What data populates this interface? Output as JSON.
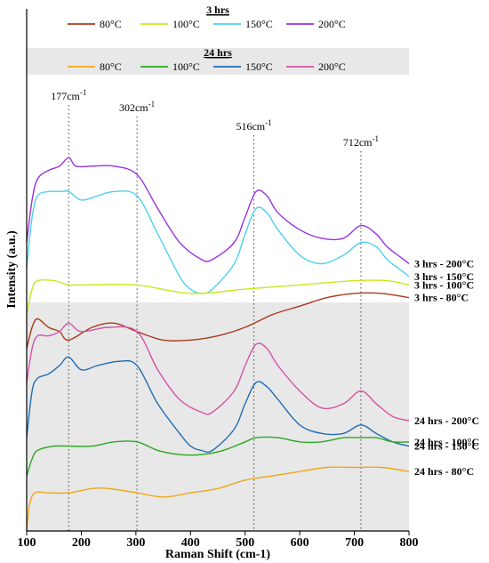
{
  "chart_data": {
    "type": "line",
    "xlabel": "Raman Shift (cm-1)",
    "ylabel": "Intensity (a.u.)",
    "xlim": [
      100,
      800
    ],
    "xticks": [
      100,
      200,
      300,
      400,
      500,
      600,
      700,
      800
    ],
    "legend_groups": [
      {
        "title": "3 hrs",
        "background": "none",
        "entries": [
          {
            "name": "80°C",
            "color": "#a83a1a"
          },
          {
            "name": "100°C",
            "color": "#c8e81e"
          },
          {
            "name": "150°C",
            "color": "#4fd0ee"
          },
          {
            "name": "200°C",
            "color": "#9b30e0"
          }
        ]
      },
      {
        "title": "24 hrs",
        "background": "#e8e8e8",
        "entries": [
          {
            "name": "80°C",
            "color": "#f0a818"
          },
          {
            "name": "100°C",
            "color": "#2aa820"
          },
          {
            "name": "150°C",
            "color": "#1f6eb4"
          },
          {
            "name": "200°C",
            "color": "#d652a6"
          }
        ]
      }
    ],
    "peaks": [
      {
        "x": 177,
        "label": "177cm-1"
      },
      {
        "x": 302,
        "label": "302cm-1"
      },
      {
        "x": 516,
        "label": "516cm-1"
      },
      {
        "x": 712,
        "label": "712cm-1"
      }
    ],
    "shaded_region": "24 hrs",
    "series": [
      {
        "name": "3 hrs - 200°C",
        "color": "#9b30e0",
        "group": "3 hrs",
        "x": [
          100,
          110,
          120,
          140,
          160,
          177,
          190,
          220,
          260,
          302,
          340,
          380,
          420,
          440,
          480,
          500,
          520,
          540,
          560,
          600,
          640,
          680,
          712,
          740,
          760,
          790,
          800
        ],
        "y": [
          0.68,
          0.78,
          0.83,
          0.85,
          0.86,
          0.88,
          0.86,
          0.86,
          0.86,
          0.84,
          0.76,
          0.68,
          0.64,
          0.64,
          0.68,
          0.74,
          0.8,
          0.79,
          0.75,
          0.71,
          0.69,
          0.69,
          0.72,
          0.7,
          0.67,
          0.64,
          0.63
        ]
      },
      {
        "name": "3 hrs - 150°C",
        "color": "#4fd0ee",
        "group": "3 hrs",
        "x": [
          100,
          110,
          120,
          140,
          160,
          177,
          200,
          230,
          260,
          302,
          340,
          380,
          400,
          420,
          440,
          480,
          500,
          520,
          540,
          560,
          600,
          640,
          680,
          712,
          740,
          760,
          790,
          800
        ],
        "y": [
          0.62,
          0.74,
          0.79,
          0.8,
          0.8,
          0.8,
          0.78,
          0.79,
          0.8,
          0.79,
          0.7,
          0.6,
          0.57,
          0.56,
          0.57,
          0.63,
          0.7,
          0.76,
          0.75,
          0.71,
          0.65,
          0.63,
          0.65,
          0.68,
          0.67,
          0.64,
          0.61,
          0.6
        ]
      },
      {
        "name": "3 hrs - 100°C",
        "color": "#c8e81e",
        "group": "3 hrs",
        "x": [
          100,
          110,
          120,
          150,
          177,
          200,
          300,
          400,
          500,
          600,
          700,
          760,
          800
        ],
        "y": [
          0.51,
          0.57,
          0.59,
          0.59,
          0.58,
          0.58,
          0.58,
          0.56,
          0.57,
          0.58,
          0.59,
          0.59,
          0.58
        ]
      },
      {
        "name": "3 hrs - 80°C",
        "color": "#a83a1a",
        "group": "3 hrs",
        "x": [
          100,
          110,
          120,
          140,
          160,
          177,
          220,
          260,
          302,
          350,
          400,
          450,
          500,
          550,
          600,
          650,
          700,
          750,
          800
        ],
        "y": [
          0.43,
          0.48,
          0.5,
          0.48,
          0.47,
          0.45,
          0.48,
          0.49,
          0.47,
          0.45,
          0.45,
          0.46,
          0.48,
          0.51,
          0.53,
          0.55,
          0.56,
          0.56,
          0.55
        ]
      },
      {
        "name": "24 hrs - 200°C",
        "color": "#d652a6",
        "group": "24 hrs",
        "x": [
          100,
          110,
          120,
          140,
          160,
          177,
          200,
          250,
          302,
          340,
          380,
          420,
          440,
          480,
          500,
          520,
          540,
          560,
          600,
          640,
          680,
          712,
          740,
          770,
          800
        ],
        "y": [
          0.35,
          0.43,
          0.46,
          0.46,
          0.47,
          0.49,
          0.47,
          0.48,
          0.47,
          0.38,
          0.31,
          0.28,
          0.28,
          0.33,
          0.39,
          0.44,
          0.43,
          0.39,
          0.33,
          0.29,
          0.3,
          0.33,
          0.3,
          0.27,
          0.26
        ]
      },
      {
        "name": "24 hrs - 150°C",
        "color": "#1f6eb4",
        "group": "24 hrs",
        "x": [
          100,
          110,
          120,
          140,
          160,
          177,
          200,
          230,
          270,
          302,
          340,
          380,
          400,
          420,
          440,
          480,
          500,
          520,
          540,
          560,
          600,
          640,
          680,
          712,
          740,
          770,
          800
        ],
        "y": [
          0.22,
          0.33,
          0.36,
          0.37,
          0.39,
          0.41,
          0.38,
          0.39,
          0.4,
          0.39,
          0.3,
          0.23,
          0.2,
          0.19,
          0.19,
          0.24,
          0.3,
          0.35,
          0.34,
          0.31,
          0.25,
          0.23,
          0.23,
          0.25,
          0.23,
          0.21,
          0.2
        ]
      },
      {
        "name": "24 hrs - 100°C",
        "color": "#2aa820",
        "group": "24 hrs",
        "x": [
          100,
          110,
          120,
          150,
          177,
          220,
          260,
          302,
          340,
          380,
          420,
          460,
          500,
          520,
          560,
          600,
          640,
          680,
          712,
          740,
          770,
          800
        ],
        "y": [
          0.13,
          0.17,
          0.19,
          0.2,
          0.2,
          0.2,
          0.21,
          0.21,
          0.19,
          0.18,
          0.18,
          0.19,
          0.21,
          0.22,
          0.22,
          0.21,
          0.21,
          0.22,
          0.22,
          0.22,
          0.21,
          0.21
        ]
      },
      {
        "name": "24 hrs - 80°C",
        "color": "#f0a818",
        "group": "24 hrs",
        "x": [
          100,
          105,
          115,
          140,
          177,
          220,
          250,
          302,
          350,
          400,
          450,
          500,
          550,
          600,
          650,
          700,
          750,
          800
        ],
        "y": [
          0.0,
          0.06,
          0.09,
          0.09,
          0.09,
          0.1,
          0.1,
          0.09,
          0.08,
          0.09,
          0.1,
          0.12,
          0.13,
          0.14,
          0.15,
          0.15,
          0.15,
          0.14
        ]
      }
    ]
  }
}
